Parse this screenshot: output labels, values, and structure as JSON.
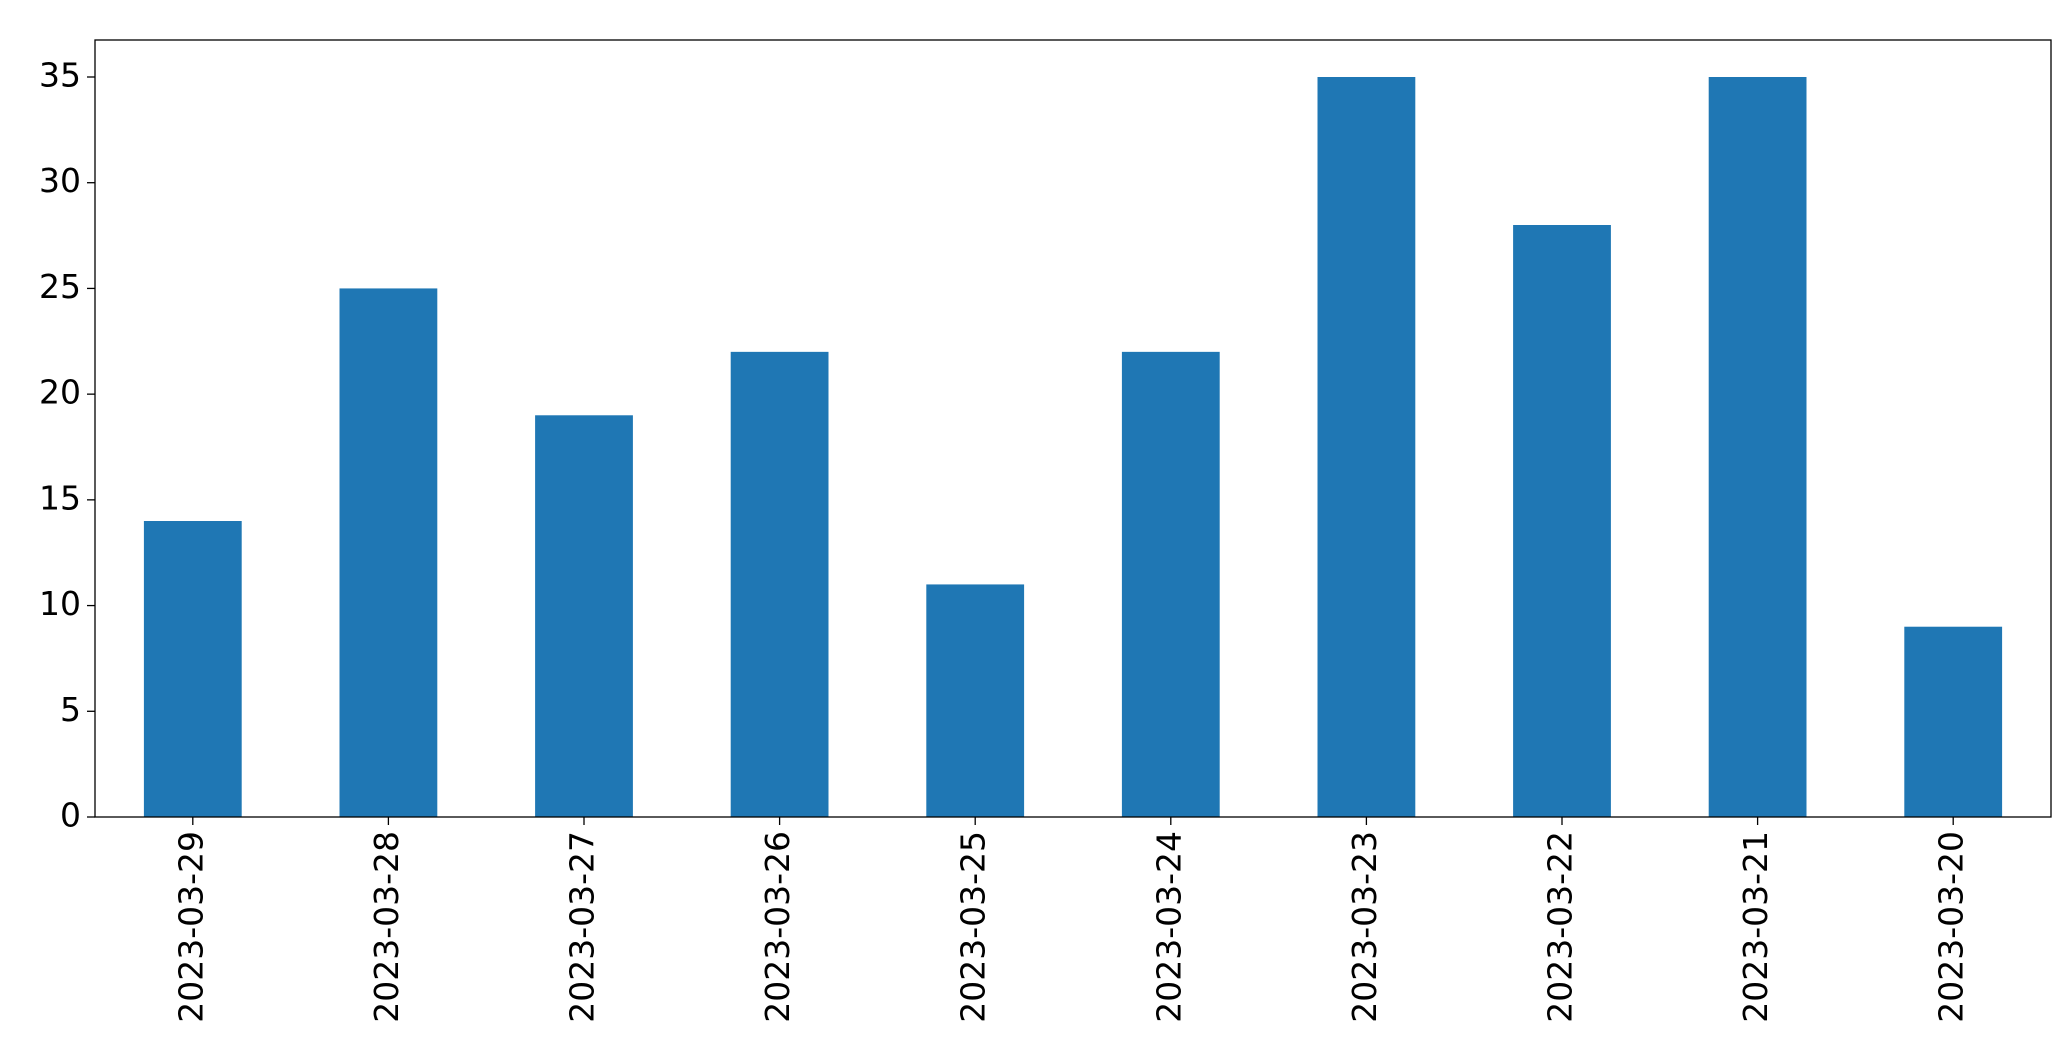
{
  "chart_data": {
    "type": "bar",
    "categories": [
      "2023-03-29",
      "2023-03-28",
      "2023-03-27",
      "2023-03-26",
      "2023-03-25",
      "2023-03-24",
      "2023-03-23",
      "2023-03-22",
      "2023-03-21",
      "2023-03-20"
    ],
    "values": [
      14,
      25,
      19,
      22,
      11,
      22,
      35,
      28,
      35,
      9
    ],
    "color": "#1f77b4",
    "ylim": [
      0,
      36.75
    ],
    "yticks": [
      0,
      5,
      10,
      15,
      20,
      25,
      30,
      35
    ],
    "grid": false
  }
}
